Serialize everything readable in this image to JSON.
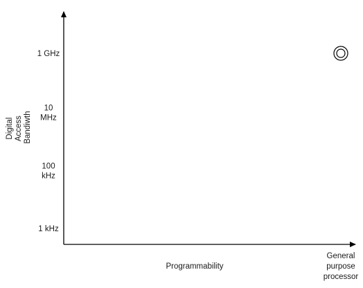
{
  "chart_data": {
    "type": "scatter",
    "title": "",
    "xlabel": "Programmability",
    "ylabel": "Digital Access Bandiwth",
    "y_scale": "log",
    "y_unit": "Hz",
    "y_ticks": [
      {
        "value": 1000,
        "label": "1 kHz"
      },
      {
        "value": 100000,
        "label": "100 kHz"
      },
      {
        "value": 10000000,
        "label": "10 MHz"
      },
      {
        "value": 1000000000,
        "label": "1 GHz"
      }
    ],
    "x_categories": [
      {
        "label": "General purpose processor"
      }
    ],
    "points": [
      {
        "x": "General purpose processor",
        "y": 1000000000
      }
    ],
    "grid": false,
    "legend": "none"
  }
}
